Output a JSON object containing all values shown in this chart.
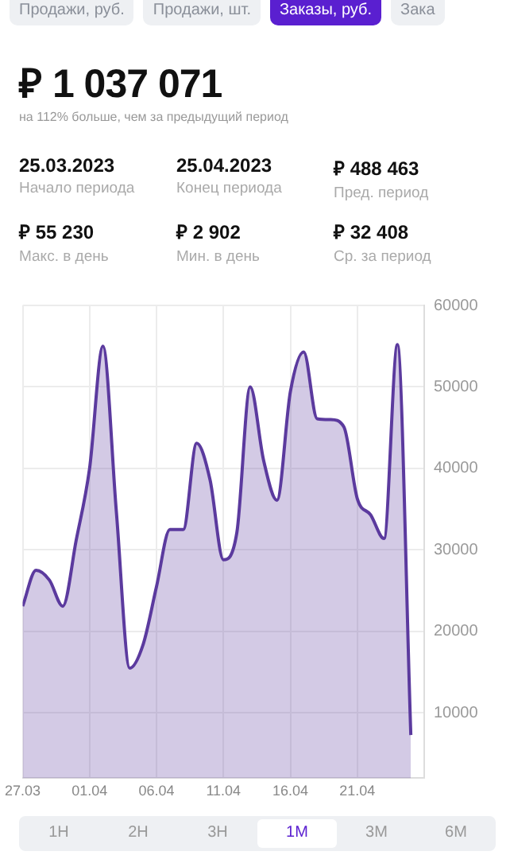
{
  "chart_data": {
    "type": "area",
    "title": "₽ 1 037 071",
    "subtitle": "на 112% больше, чем за предыдущий период",
    "annotations": [
      "Продажи, руб.",
      "Продажи, шт.",
      "Заказы, руб.",
      "Зака",
      "25.03.2023",
      "Начало периода",
      "25.04.2023",
      "Конец периода",
      "₽  488 463",
      "Пред. период",
      "₽ 55 230",
      "Макс. в день",
      "₽ 2 902",
      "Мин. в день",
      "₽ 32 408",
      "Ср. за период",
      "1Н",
      "2Н",
      "3Н",
      "1М",
      "3М",
      "6М"
    ],
    "x": [
      "2023-03-27",
      "2023-03-28",
      "2023-03-29",
      "2023-03-30",
      "2023-03-31",
      "2023-04-01",
      "2023-04-02",
      "2023-04-03",
      "2023-04-04",
      "2023-04-05",
      "2023-04-06",
      "2023-04-07",
      "2023-04-08",
      "2023-04-09",
      "2023-04-10",
      "2023-04-11",
      "2023-04-12",
      "2023-04-13",
      "2023-04-14",
      "2023-04-15",
      "2023-04-16",
      "2023-04-17",
      "2023-04-18",
      "2023-04-19",
      "2023-04-20",
      "2023-04-21",
      "2023-04-22",
      "2023-04-23",
      "2023-04-24",
      "2023-04-25"
    ],
    "series": [
      {
        "color": "#5b3a9e",
        "values": [
          23100,
          27500,
          26300,
          23100,
          31200,
          40000,
          55000,
          34700,
          15500,
          18400,
          25500,
          32500,
          32500,
          43100,
          38600,
          28800,
          32100,
          50000,
          41000,
          36100,
          49400,
          54300,
          46100,
          46000,
          45100,
          36300,
          34300,
          31400,
          55200,
          7300
        ]
      }
    ],
    "xlim": [
      "2023-03-27",
      "2023-04-26"
    ],
    "xticks": [
      {
        "value": "2023-03-27",
        "label": "27.03"
      },
      {
        "value": "2023-04-01",
        "label": "01.04"
      },
      {
        "value": "2023-04-06",
        "label": "06.04"
      },
      {
        "value": "2023-04-11",
        "label": "11.04"
      },
      {
        "value": "2023-04-16",
        "label": "16.04"
      },
      {
        "value": "2023-04-21",
        "label": "21.04"
      }
    ],
    "ylim": [
      2000,
      60000
    ],
    "yticks": [
      10000,
      20000,
      30000,
      40000,
      50000,
      60000
    ],
    "grid": true,
    "legend": false,
    "marker": "none",
    "line_style": "solid"
  }
}
